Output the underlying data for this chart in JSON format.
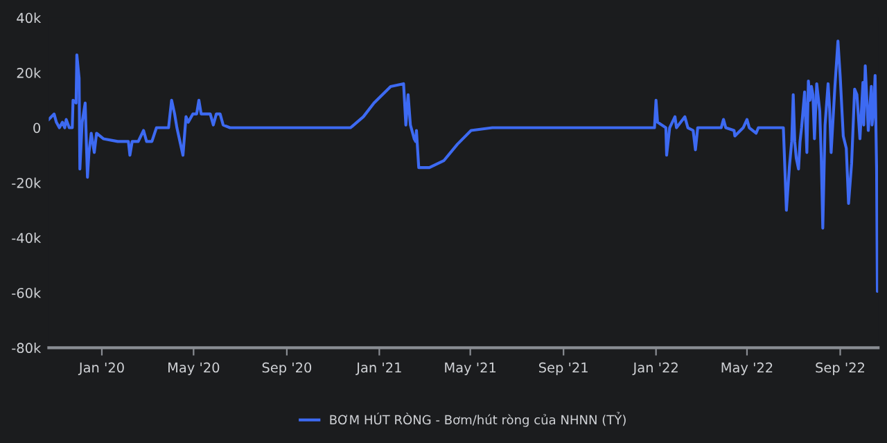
{
  "chart_data": {
    "type": "line",
    "x": [
      "2019-10-23",
      "2019-10-30",
      "2019-11-02",
      "2019-11-06",
      "2019-11-10",
      "2019-11-13",
      "2019-11-15",
      "2019-11-19",
      "2019-11-23",
      "2019-11-24",
      "2019-11-28",
      "2019-11-29",
      "2019-12-02",
      "2019-12-03",
      "2019-12-06",
      "2019-12-10",
      "2019-12-13",
      "2019-12-15",
      "2019-12-18",
      "2019-12-22",
      "2019-12-25",
      "2020-01-03",
      "2020-01-22",
      "2020-02-05",
      "2020-02-07",
      "2020-02-10",
      "2020-02-18",
      "2020-02-25",
      "2020-02-29",
      "2020-03-07",
      "2020-03-13",
      "2020-03-29",
      "2020-04-02",
      "2020-04-06",
      "2020-04-09",
      "2020-04-17",
      "2020-04-21",
      "2020-04-24",
      "2020-04-30",
      "2020-05-05",
      "2020-05-08",
      "2020-05-11",
      "2020-05-23",
      "2020-05-27",
      "2020-05-31",
      "2020-06-05",
      "2020-06-09",
      "2020-06-18",
      "2020-11-24",
      "2020-12-11",
      "2020-12-25",
      "2021-01-16",
      "2021-02-02",
      "2021-02-05",
      "2021-02-08",
      "2021-02-11",
      "2021-02-16",
      "2021-02-18",
      "2021-02-19",
      "2021-02-22",
      "2021-03-08",
      "2021-03-27",
      "2021-04-14",
      "2021-05-02",
      "2021-05-30",
      "2021-12-30",
      "2022-01-01",
      "2022-01-03",
      "2022-01-14",
      "2022-01-15",
      "2022-01-19",
      "2022-01-26",
      "2022-01-28",
      "2022-02-08",
      "2022-02-12",
      "2022-02-19",
      "2022-02-22",
      "2022-02-25",
      "2022-03-28",
      "2022-03-31",
      "2022-04-03",
      "2022-04-14",
      "2022-04-15",
      "2022-04-26",
      "2022-05-01",
      "2022-05-04",
      "2022-05-13",
      "2022-05-16",
      "2022-06-18",
      "2022-06-22",
      "2022-06-26",
      "2022-06-29",
      "2022-07-01",
      "2022-07-03",
      "2022-07-05",
      "2022-07-08",
      "2022-07-10",
      "2022-07-12",
      "2022-07-16",
      "2022-07-19",
      "2022-07-21",
      "2022-07-23",
      "2022-07-25",
      "2022-07-27",
      "2022-07-29",
      "2022-08-01",
      "2022-08-05",
      "2022-08-07",
      "2022-08-09",
      "2022-08-12",
      "2022-08-16",
      "2022-08-18",
      "2022-08-20",
      "2022-08-25",
      "2022-08-29",
      "2022-09-01",
      "2022-09-05",
      "2022-09-09",
      "2022-09-12",
      "2022-09-16",
      "2022-09-20",
      "2022-09-23",
      "2022-09-27",
      "2022-10-01",
      "2022-10-02",
      "2022-10-04",
      "2022-10-08",
      "2022-10-12",
      "2022-10-13",
      "2022-10-15",
      "2022-10-17",
      "2022-10-19",
      "2022-10-20",
      "2022-10-21"
    ],
    "series": [
      {
        "name": "BƠM HÚT RÒNG - Bơm/hút ròng của NHNN (TỶ)",
        "color": "#3d6af2",
        "values": [
          3000,
          5000,
          2000,
          0,
          2000,
          0,
          3000,
          0,
          0,
          10000,
          9000,
          26500,
          18000,
          -15000,
          2000,
          9000,
          -18000,
          -9000,
          -2000,
          -9000,
          -2000,
          -4000,
          -5000,
          -5000,
          -10000,
          -5000,
          -5000,
          -1000,
          -5000,
          -5000,
          0,
          0,
          10000,
          5000,
          0,
          -10000,
          4000,
          2000,
          5000,
          5000,
          10000,
          5000,
          5000,
          1000,
          5000,
          5000,
          1000,
          0,
          0,
          4000,
          9000,
          15000,
          16000,
          1000,
          12000,
          1000,
          -4000,
          -5000,
          -1000,
          -14500,
          -14500,
          -12000,
          -6000,
          -1000,
          0,
          0,
          10000,
          2000,
          0,
          -10000,
          0,
          4000,
          0,
          4000,
          0,
          -1000,
          -8000,
          0,
          0,
          3000,
          0,
          -1000,
          -3000,
          0,
          3000,
          0,
          -2000,
          0,
          0,
          -30000,
          -14000,
          -5000,
          12000,
          -5000,
          -11000,
          -15000,
          -5000,
          0,
          13000,
          -9000,
          17000,
          10000,
          15000,
          12000,
          -4000,
          16000,
          6000,
          -11000,
          -36500,
          1000,
          16000,
          7000,
          -9000,
          15000,
          31500,
          18500,
          -3000,
          -7500,
          -27500,
          -13000,
          14000,
          12000,
          -4000,
          16500,
          1000,
          22500,
          -1000,
          15000,
          1000,
          6000,
          19000,
          -15500,
          -59500,
          -41500
        ]
      }
    ],
    "xlim": [
      "2019-10-23",
      "2022-10-21"
    ],
    "xticks": [
      {
        "value": "2020-01-01",
        "label": "Jan '20"
      },
      {
        "value": "2020-05-01",
        "label": "May '20"
      },
      {
        "value": "2020-09-01",
        "label": "Sep '20"
      },
      {
        "value": "2021-01-01",
        "label": "Jan '21"
      },
      {
        "value": "2021-05-01",
        "label": "May '21"
      },
      {
        "value": "2021-09-01",
        "label": "Sep '21"
      },
      {
        "value": "2022-01-01",
        "label": "Jan '22"
      },
      {
        "value": "2022-05-01",
        "label": "May '22"
      },
      {
        "value": "2022-09-01",
        "label": "Sep '22"
      }
    ],
    "ylim": [
      -80000,
      40000
    ],
    "yticks": [
      {
        "value": -80000,
        "label": "-80k"
      },
      {
        "value": -60000,
        "label": "-60k"
      },
      {
        "value": -40000,
        "label": "-40k"
      },
      {
        "value": -20000,
        "label": "-20k"
      },
      {
        "value": 0,
        "label": "0"
      },
      {
        "value": 20000,
        "label": "20k"
      },
      {
        "value": 40000,
        "label": "40k"
      }
    ],
    "legend": "bottom",
    "line_style": "solid"
  }
}
